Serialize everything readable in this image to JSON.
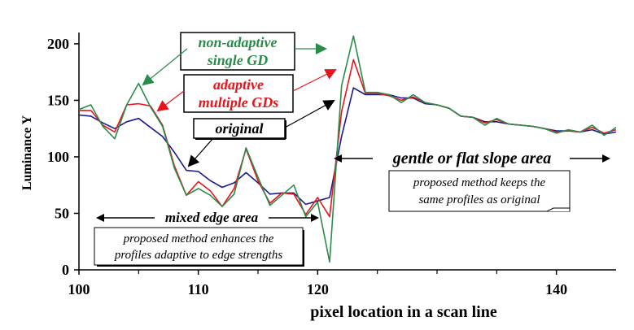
{
  "chart_data": {
    "type": "line",
    "title": "",
    "xlabel": "pixel location in a scan line",
    "ylabel": "Luminance Y",
    "xlim": [
      100,
      145
    ],
    "ylim": [
      0,
      210
    ],
    "x_ticks": [
      100,
      110,
      120,
      140
    ],
    "y_ticks": [
      0,
      50,
      100,
      150,
      200
    ],
    "grid": false,
    "series": [
      {
        "name": "original",
        "color": "#1a1a8c",
        "x": [
          100,
          101,
          102,
          103,
          104,
          105,
          106,
          107,
          108,
          109,
          110,
          111,
          112,
          113,
          114,
          115,
          116,
          117,
          118,
          119,
          120,
          121,
          122,
          123,
          124,
          125,
          126,
          127,
          128,
          129,
          130,
          131,
          132,
          133,
          134,
          135,
          136,
          137,
          138,
          139,
          140,
          141,
          142,
          143,
          144,
          145
        ],
        "y": [
          137,
          136,
          130,
          125,
          131,
          134,
          126,
          118,
          104,
          88,
          87,
          79,
          73,
          77,
          86,
          77,
          67,
          68,
          68,
          58,
          61,
          64,
          118,
          161,
          155,
          155,
          155,
          152,
          152,
          147,
          146,
          143,
          136,
          135,
          131,
          131,
          129,
          128,
          127,
          125,
          123,
          123,
          122,
          124,
          120,
          122
        ]
      },
      {
        "name": "adaptive multiple GDs",
        "color": "#e8141c",
        "x": [
          100,
          101,
          102,
          103,
          104,
          105,
          106,
          107,
          108,
          109,
          110,
          111,
          112,
          113,
          114,
          115,
          116,
          117,
          118,
          119,
          120,
          121,
          122,
          123,
          124,
          125,
          126,
          127,
          128,
          129,
          130,
          131,
          132,
          133,
          134,
          135,
          136,
          137,
          138,
          139,
          140,
          141,
          142,
          143,
          144,
          145
        ],
        "y": [
          141,
          141,
          128,
          122,
          146,
          147,
          145,
          128,
          92,
          66,
          78,
          70,
          56,
          72,
          107,
          79,
          59,
          68,
          67,
          49,
          64,
          47,
          140,
          186,
          156,
          156,
          154,
          150,
          153,
          148,
          146,
          143,
          136,
          135,
          130,
          133,
          129,
          128,
          127,
          125,
          122,
          123,
          122,
          126,
          121,
          124
        ]
      },
      {
        "name": "non-adaptive single GD",
        "color": "#2a8c4a",
        "x": [
          100,
          101,
          102,
          103,
          104,
          105,
          106,
          107,
          108,
          109,
          110,
          111,
          112,
          113,
          114,
          115,
          116,
          117,
          118,
          119,
          120,
          121,
          122,
          123,
          124,
          125,
          126,
          127,
          128,
          129,
          130,
          131,
          132,
          133,
          134,
          135,
          136,
          137,
          138,
          139,
          140,
          141,
          142,
          143,
          144,
          145
        ],
        "y": [
          142,
          146,
          127,
          116,
          146,
          165,
          144,
          127,
          90,
          66,
          72,
          66,
          56,
          67,
          108,
          82,
          57,
          66,
          75,
          47,
          60,
          7,
          163,
          207,
          157,
          157,
          155,
          148,
          155,
          148,
          146,
          143,
          136,
          135,
          128,
          134,
          129,
          128,
          127,
          125,
          121,
          124,
          122,
          128,
          119,
          126
        ]
      }
    ]
  },
  "legend": {
    "non_adaptive_line1": "non-adaptive",
    "non_adaptive_line2": "single GD",
    "adaptive_line1": "adaptive",
    "adaptive_line2": "multiple GDs",
    "original": "original"
  },
  "annotations": {
    "mixed_edge": "mixed edge area",
    "mixed_note_line1": "proposed method enhances the",
    "mixed_note_line2": "profiles adaptive to edge strengths",
    "gentle_slope": "gentle or flat slope area",
    "gentle_note_line1": "proposed method keeps the",
    "gentle_note_line2": "same profiles as original"
  }
}
